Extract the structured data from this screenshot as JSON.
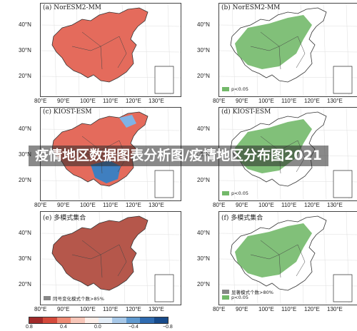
{
  "overlay_title": "疫情地区数据图表分析图/疫情地区分布图2021",
  "panels": [
    {
      "id": "a",
      "label": "(a) NorESM2-MM",
      "fill": "#e46b5c",
      "type": "correlation"
    },
    {
      "id": "b",
      "label": "(b) NorESM2-MM",
      "fill": "#73b96a",
      "type": "significance",
      "legend": [
        "p<0.05"
      ]
    },
    {
      "id": "c",
      "label": "(c) KIOST-ESM",
      "fill": "#e46b5c",
      "type": "correlation"
    },
    {
      "id": "d",
      "label": "(d) KIOST-ESM",
      "fill": "#73b96a",
      "type": "significance",
      "legend": [
        "p<0.05"
      ]
    },
    {
      "id": "e",
      "label": "(e) 多模式集合",
      "fill": "#b5574b",
      "type": "correlation",
      "legend": [
        "同号变化模式个数>85%"
      ]
    },
    {
      "id": "f",
      "label": "(f) 多模式集合",
      "fill": "#73b96a",
      "type": "significance",
      "legend": [
        "显著模式个数>80%",
        "p<0.05"
      ]
    }
  ],
  "lat_labels": [
    "40°N",
    "30°N",
    "20°N"
  ],
  "lon_labels": [
    "80°E",
    "90°E",
    "100°E",
    "110°E",
    "120°E",
    "130°E"
  ],
  "colorbar": {
    "colors": [
      "#a12a2a",
      "#d44a3c",
      "#ee8a74",
      "#f7c6b8",
      "#fdeee8",
      "#e4eef8",
      "#a7c8e8",
      "#5f99cf",
      "#2f6bb0",
      "#174a8a"
    ],
    "ticks": [
      "0.8",
      "0.4",
      "0.0",
      "−0.4",
      "−0.8"
    ]
  }
}
